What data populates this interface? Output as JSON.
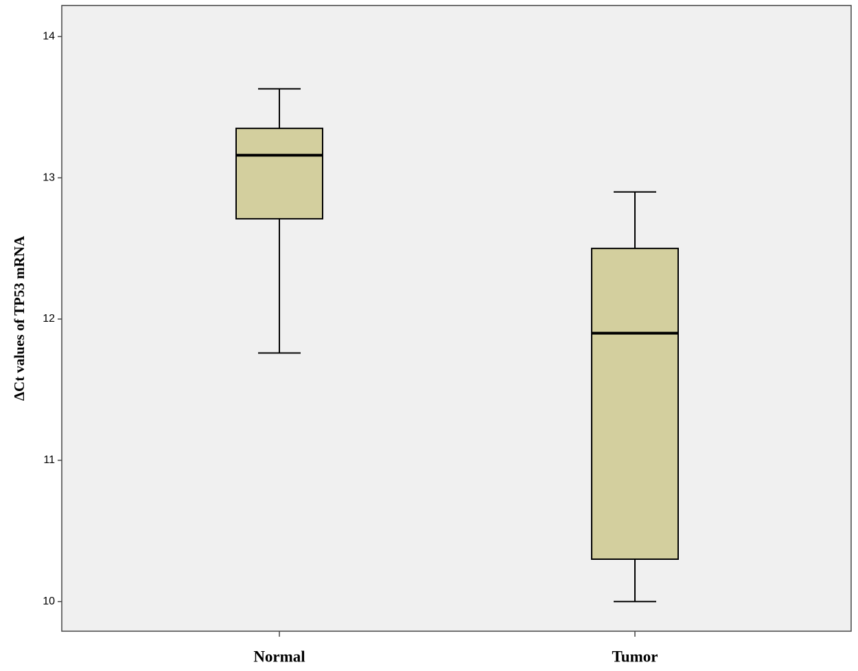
{
  "chart_data": {
    "type": "box",
    "y_label": "ΔCt values of TP53 mRNA",
    "categories": [
      "Normal",
      "Tumor"
    ],
    "boxes": [
      {
        "min": 11.76,
        "q1": 12.71,
        "median": 13.16,
        "q3": 13.35,
        "max": 13.63
      },
      {
        "min": 10.0,
        "q1": 10.3,
        "median": 11.9,
        "q3": 12.5,
        "max": 12.9
      }
    ],
    "color": "#d3cf9e",
    "ylim": [
      9.79,
      14.22
    ],
    "yticks": [
      10,
      11,
      12,
      13,
      14
    ]
  }
}
